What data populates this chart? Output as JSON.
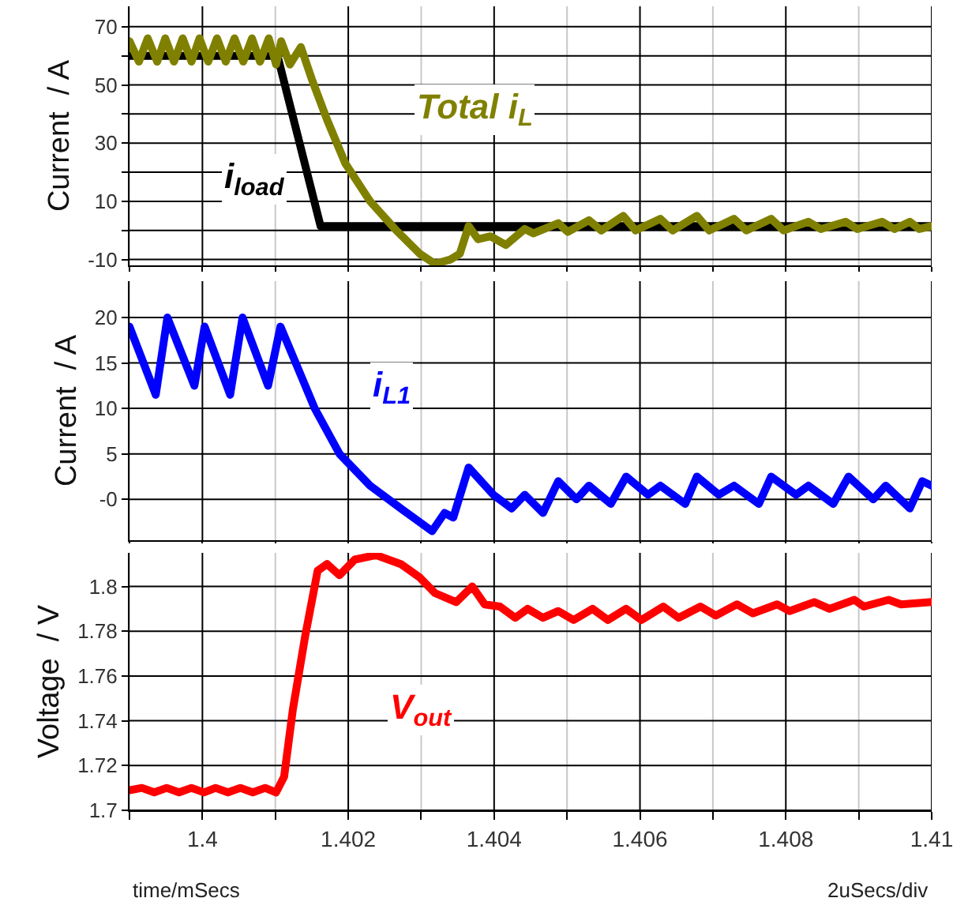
{
  "chart_data": [
    {
      "type": "line",
      "ylabel": "Current  / A",
      "xlim": [
        1.399,
        1.41
      ],
      "ylim": [
        -12,
        77
      ],
      "tick_labels": "y",
      "grid": true,
      "legend": false,
      "xticks": [
        {
          "value": 1.399,
          "label": null
        },
        1.4,
        {
          "value": 1.401,
          "label": null
        },
        1.402,
        {
          "value": 1.403,
          "label": null
        },
        1.404,
        {
          "value": 1.405,
          "label": null
        },
        1.406,
        {
          "value": 1.407,
          "label": null
        },
        1.408,
        {
          "value": 1.409,
          "label": null
        },
        1.41
      ],
      "yticks": [
        -10,
        {
          "value": 0,
          "label": null
        },
        10,
        {
          "value": 20,
          "label": null
        },
        30,
        {
          "value": 40,
          "label": null
        },
        50,
        {
          "value": 60,
          "label": null
        },
        70
      ],
      "series": [
        {
          "name": "i$_{load}$",
          "color": "#000000",
          "x": [
            1.399,
            1.40103,
            1.40162,
            1.41
          ],
          "values": [
            60,
            60,
            1.5,
            1.5
          ]
        },
        {
          "name": "Total i$_{L}$",
          "color": "#808000",
          "x": [
            1.399,
            1.39913,
            1.39925,
            1.39938,
            1.39949,
            1.39961,
            1.39973,
            1.39985,
            1.39996,
            1.40008,
            1.4002,
            1.40032,
            1.40044,
            1.40056,
            1.40068,
            1.40079,
            1.40091,
            1.40101,
            1.40108,
            1.4012,
            1.40135,
            1.4015,
            1.40171,
            1.40196,
            1.4023,
            1.40264,
            1.40298,
            1.40319,
            1.4034,
            1.40353,
            1.40365,
            1.40378,
            1.40395,
            1.40416,
            1.40442,
            1.40454,
            1.40488,
            1.40501,
            1.4053,
            1.40547,
            1.40577,
            1.40594,
            1.40628,
            1.40645,
            1.40678,
            1.40695,
            1.40729,
            1.40746,
            1.4078,
            1.40797,
            1.40831,
            1.40848,
            1.40882,
            1.40898,
            1.40932,
            1.40949,
            1.4097,
            1.40983,
            1.41
          ],
          "values": [
            65,
            58,
            66,
            58,
            66,
            58,
            66,
            58,
            66,
            58,
            66,
            58,
            66,
            58,
            66,
            58,
            66,
            57,
            65,
            57,
            63,
            52,
            38,
            23,
            10,
            0.5,
            -8,
            -11.5,
            -10,
            -8,
            1.5,
            -3,
            -2,
            -5,
            0.5,
            -1,
            2.5,
            -0.5,
            3.5,
            0,
            5,
            0,
            4,
            0,
            5,
            0,
            4,
            0,
            4,
            0,
            3,
            0.5,
            3,
            0.5,
            3,
            0.5,
            3,
            0.5,
            1.5
          ]
        }
      ]
    },
    {
      "type": "line",
      "ylabel": "Current  / A",
      "xlim": [
        1.399,
        1.41
      ],
      "ylim": [
        -4.5,
        24
      ],
      "tick_labels": "y",
      "grid": true,
      "legend": false,
      "xticks": [
        {
          "value": 1.399,
          "label": null
        },
        1.4,
        {
          "value": 1.401,
          "label": null
        },
        1.402,
        {
          "value": 1.403,
          "label": null
        },
        1.404,
        {
          "value": 1.405,
          "label": null
        },
        1.406,
        {
          "value": 1.407,
          "label": null
        },
        1.408,
        {
          "value": 1.409,
          "label": null
        },
        1.41
      ],
      "yticks": [
        {
          "value": 0,
          "label": "-0"
        },
        5,
        10,
        15,
        20
      ],
      "series": [
        {
          "name": "i$_{L1}$",
          "color": "#0000ff",
          "x": [
            1.399,
            1.39936,
            1.39952,
            1.39989,
            1.40003,
            1.40038,
            1.40055,
            1.4009,
            1.40107,
            1.40128,
            1.40154,
            1.40188,
            1.4023,
            1.40272,
            1.40315,
            1.40332,
            1.40344,
            1.40365,
            1.40399,
            1.40424,
            1.40442,
            1.40467,
            1.40488,
            1.40513,
            1.4053,
            1.4056,
            1.40581,
            1.40611,
            1.40628,
            1.40662,
            1.40678,
            1.40708,
            1.40729,
            1.40763,
            1.4078,
            1.40814,
            1.40831,
            1.40865,
            1.40886,
            1.4092,
            1.40937,
            1.4097,
            1.40987,
            1.41
          ],
          "values": [
            19,
            11.5,
            20,
            12.5,
            19,
            11.5,
            20,
            12.5,
            19,
            15,
            10,
            5,
            1.5,
            -1,
            -3.5,
            -1.5,
            -2,
            3.5,
            0.5,
            -1,
            0.5,
            -1.5,
            2,
            0,
            1.5,
            -0.5,
            2.5,
            0.5,
            1.5,
            -0.5,
            2.5,
            0.5,
            1.5,
            -0.5,
            2.5,
            0.5,
            1.5,
            -0.5,
            2.5,
            0,
            1.5,
            -1,
            2,
            1.5
          ]
        }
      ]
    },
    {
      "type": "line",
      "ylabel": "Voltage  / V",
      "xlabel": "time/mSecs",
      "annotations": [
        "2uSecs/div"
      ],
      "xlim": [
        1.399,
        1.41
      ],
      "ylim": [
        1.7,
        1.815
      ],
      "grid": true,
      "legend": false,
      "xticks": [
        {
          "value": 1.399,
          "label": null
        },
        1.4,
        {
          "value": 1.401,
          "label": null
        },
        1.402,
        {
          "value": 1.403,
          "label": null
        },
        1.404,
        {
          "value": 1.405,
          "label": null
        },
        1.406,
        {
          "value": 1.407,
          "label": null
        },
        1.408,
        {
          "value": 1.409,
          "label": null
        },
        1.41
      ],
      "yticks": [
        1.7,
        1.72,
        1.74,
        1.76,
        1.78,
        1.8
      ],
      "series": [
        {
          "name": "V$_{out}$",
          "color": "#ff0000",
          "x": [
            1.399,
            1.39917,
            1.39934,
            1.39951,
            1.39968,
            1.39985,
            1.40002,
            1.40018,
            1.40035,
            1.40052,
            1.40069,
            1.40086,
            1.40101,
            1.40112,
            1.40124,
            1.40141,
            1.40158,
            1.40171,
            1.40188,
            1.40209,
            1.40238,
            1.40272,
            1.40298,
            1.40319,
            1.40348,
            1.4037,
            1.40387,
            1.40408,
            1.40429,
            1.40446,
            1.40467,
            1.40488,
            1.40509,
            1.40535,
            1.40556,
            1.40581,
            1.40602,
            1.40632,
            1.40653,
            1.40683,
            1.40704,
            1.40733,
            1.40755,
            1.40788,
            1.40805,
            1.40839,
            1.4086,
            1.40894,
            1.40907,
            1.40941,
            1.40958,
            1.41
          ],
          "values": [
            1.709,
            1.71,
            1.708,
            1.71,
            1.708,
            1.71,
            1.708,
            1.71,
            1.708,
            1.71,
            1.708,
            1.71,
            1.708,
            1.715,
            1.745,
            1.778,
            1.807,
            1.81,
            1.805,
            1.812,
            1.814,
            1.81,
            1.804,
            1.797,
            1.793,
            1.8,
            1.792,
            1.791,
            1.786,
            1.79,
            1.786,
            1.789,
            1.785,
            1.79,
            1.785,
            1.79,
            1.785,
            1.791,
            1.786,
            1.791,
            1.787,
            1.792,
            1.788,
            1.792,
            1.789,
            1.793,
            1.79,
            1.794,
            1.791,
            1.794,
            1.792,
            1.793
          ]
        }
      ]
    }
  ]
}
